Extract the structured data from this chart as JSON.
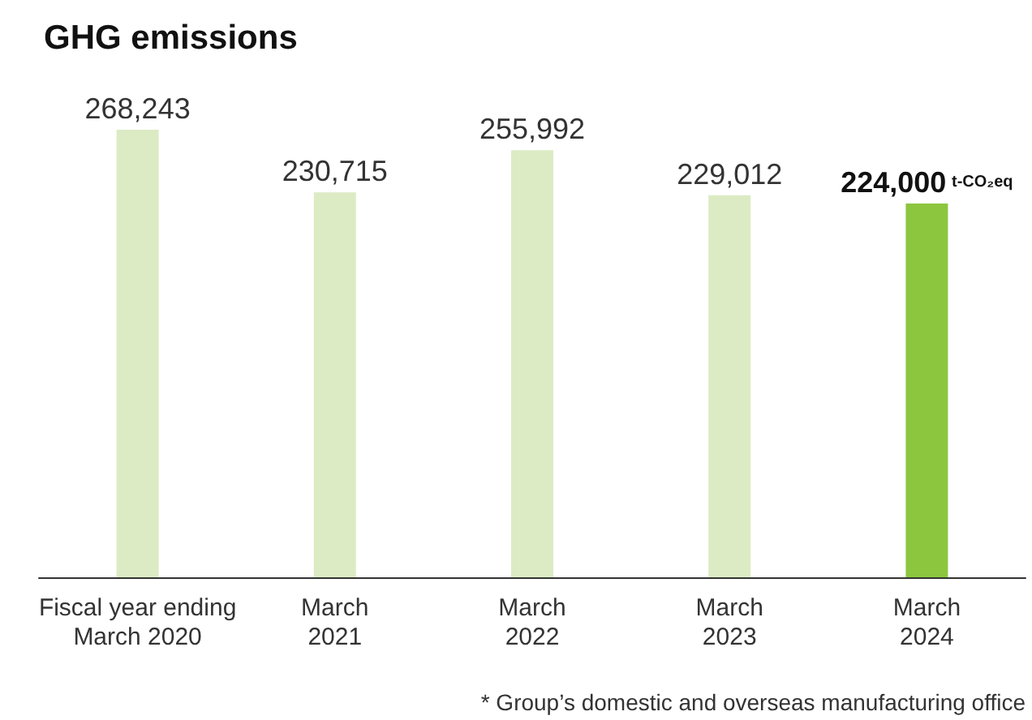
{
  "chart_data": {
    "type": "bar",
    "title": "GHG emissions",
    "categories": [
      "Fiscal year ending\nMarch 2020",
      "March\n2021",
      "March\n2022",
      "March\n2023",
      "March\n2024"
    ],
    "values": [
      268243,
      230715,
      255992,
      229012,
      224000
    ],
    "colors": [
      "#dcebc4",
      "#dcebc4",
      "#dcebc4",
      "#dcebc4",
      "#8cc63f"
    ],
    "value_labels": [
      "268,243",
      "230,715",
      "255,992",
      "229,012",
      "224,000 t-CO₂eq"
    ],
    "annotations": [
      "* Group’s domestic and overseas manufacturing office"
    ],
    "grid": false
  }
}
